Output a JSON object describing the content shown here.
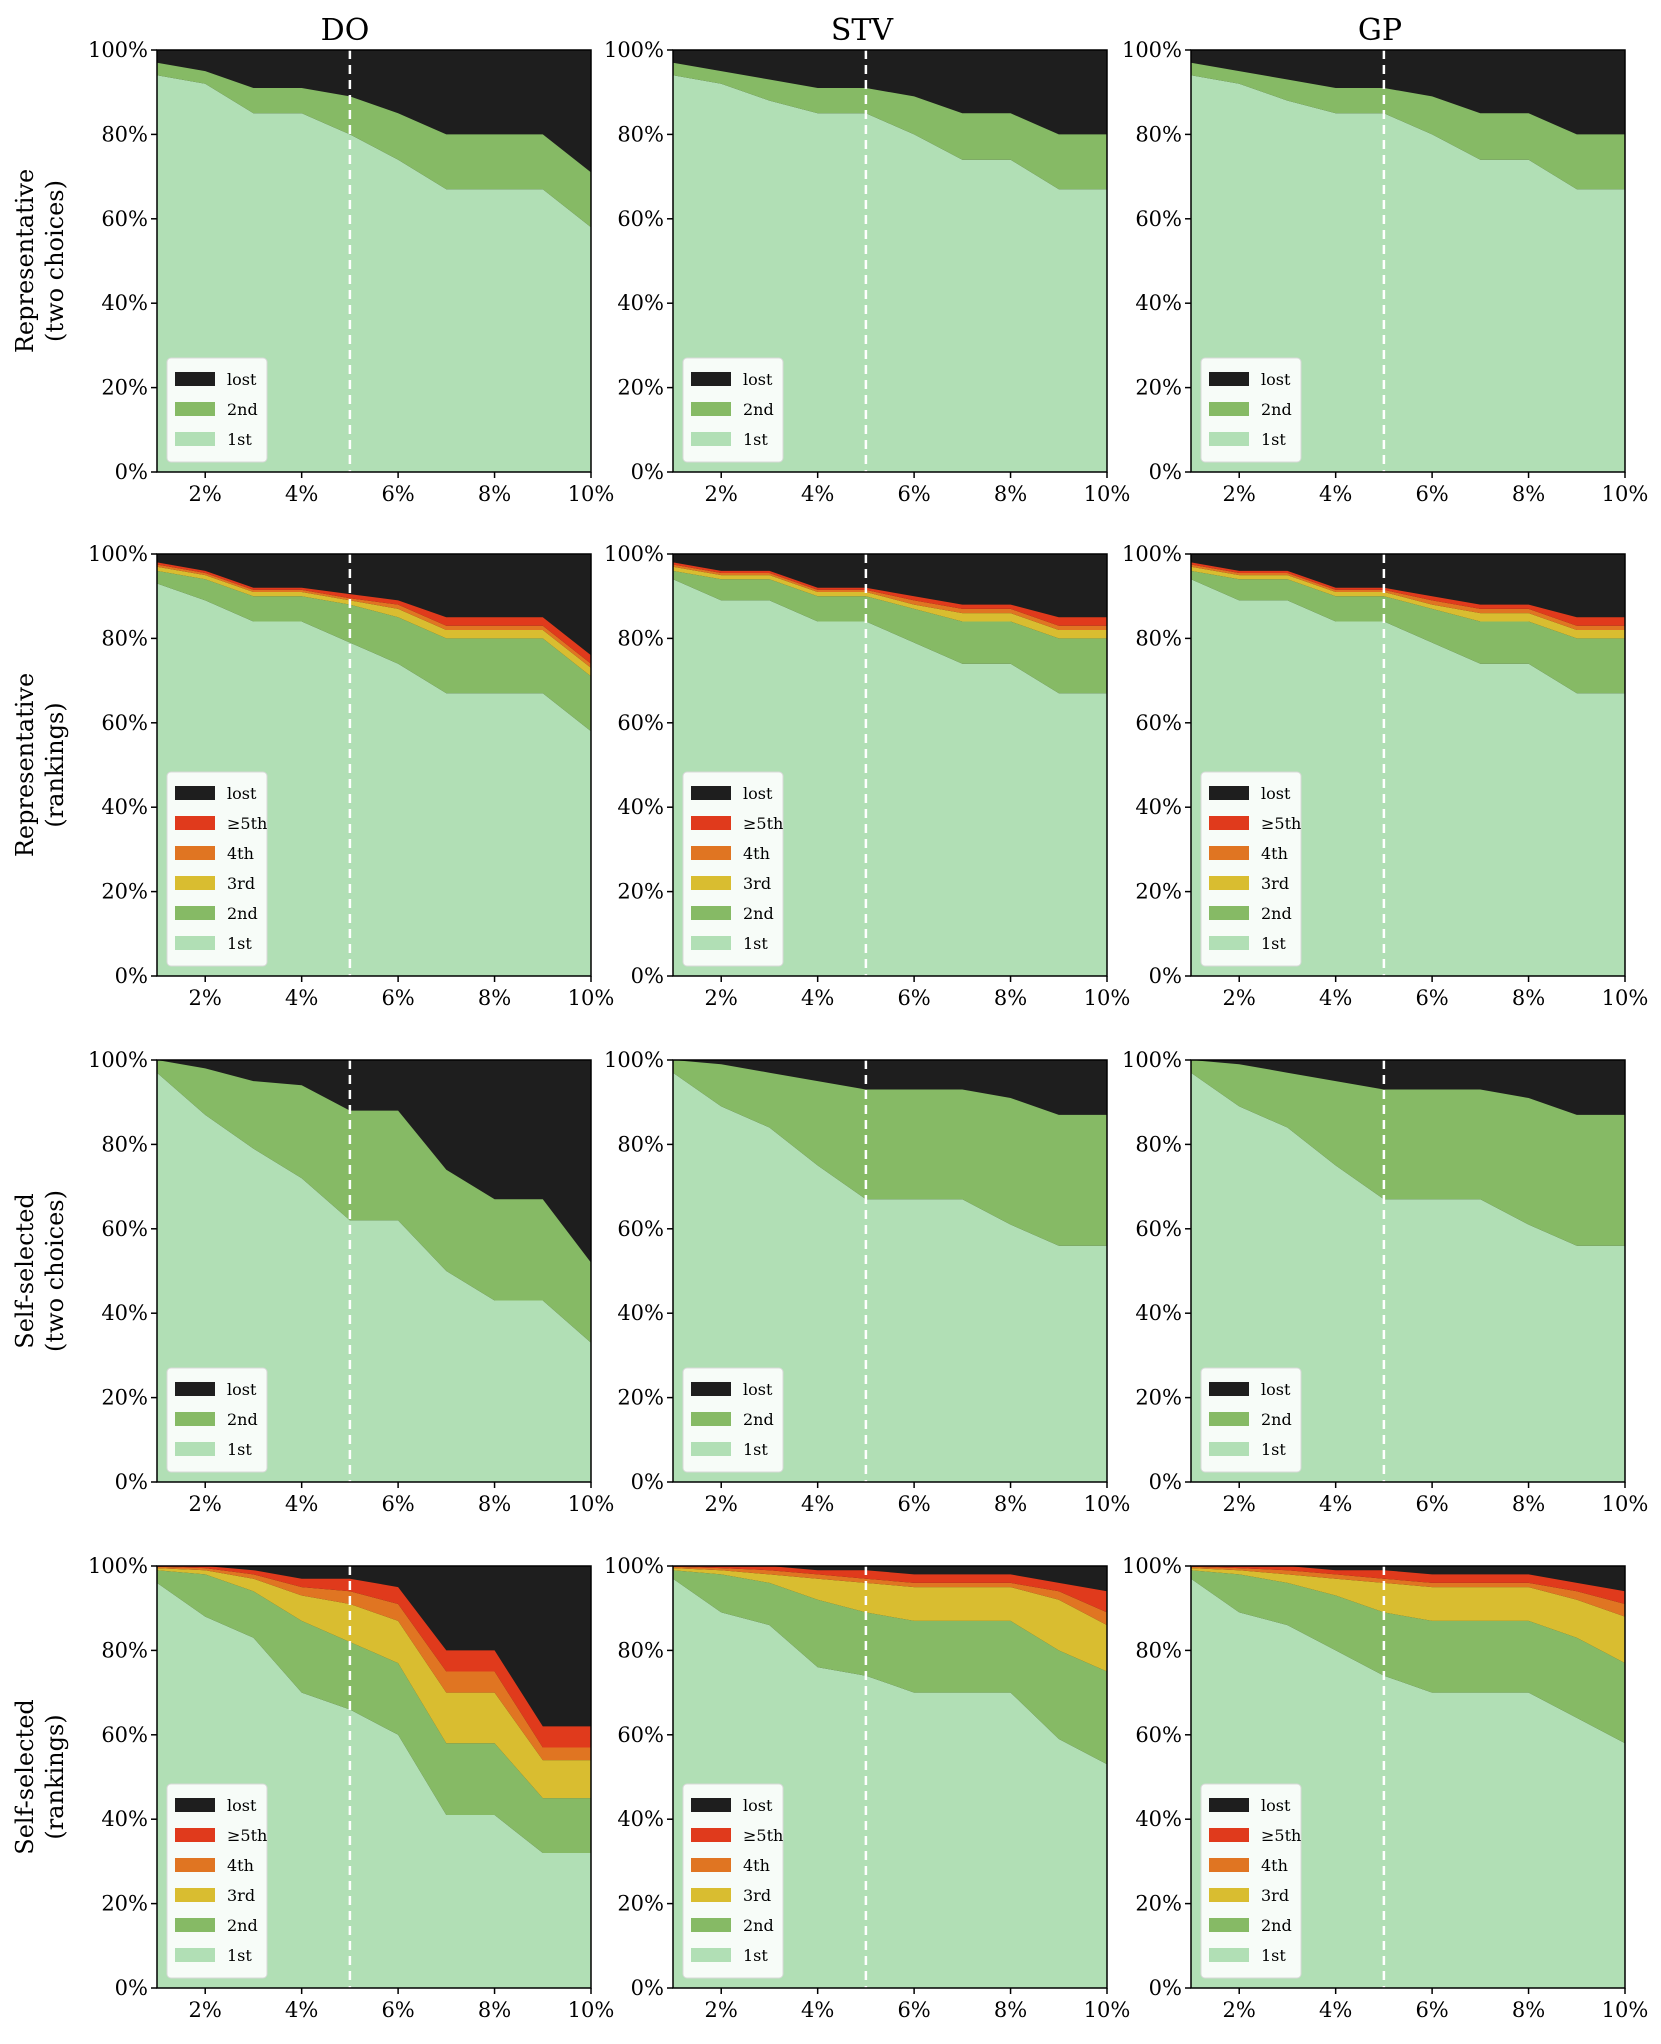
{
  "figure": {
    "columns": [
      "DO",
      "STV",
      "GP"
    ],
    "rows": [
      {
        "line1": "Representative",
        "line2": "(two choices)"
      },
      {
        "line1": "Representative",
        "line2": "(rankings)"
      },
      {
        "line1": "Self-selected",
        "line2": "(two choices)"
      },
      {
        "line1": "Self-selected",
        "line2": "(rankings)"
      }
    ],
    "x_ticks": [
      "2%",
      "4%",
      "6%",
      "8%",
      "10%"
    ],
    "y_ticks": [
      "0%",
      "20%",
      "40%",
      "60%",
      "80%",
      "100%"
    ],
    "reference_line_x": 5
  },
  "colors": {
    "1st": "#b1dfb5",
    "2nd": "#86ba65",
    "3rd": "#d9bd30",
    "4th": "#e07522",
    "5th": "#e03a1c",
    "lost": "#1e1e1e",
    "reference_line": "#ffffff"
  },
  "chart_data": [
    {
      "type": "area",
      "row": 0,
      "col": 0,
      "title": "DO",
      "x": [
        1,
        2,
        3,
        4,
        5,
        6,
        7,
        8,
        9,
        10
      ],
      "xlim": [
        1,
        10
      ],
      "ylim": [
        0,
        100
      ],
      "legend_position": "lower-left",
      "legend": [
        "lost",
        "2nd",
        "1st"
      ],
      "series": [
        {
          "name": "1st",
          "values": [
            94,
            92,
            85,
            85,
            80,
            74,
            67,
            67,
            67,
            58
          ]
        },
        {
          "name": "2nd",
          "values": [
            3,
            3,
            6,
            6,
            9,
            11,
            13,
            13,
            13,
            13
          ]
        }
      ]
    },
    {
      "type": "area",
      "row": 0,
      "col": 1,
      "title": "STV",
      "x": [
        1,
        2,
        3,
        4,
        5,
        6,
        7,
        8,
        9,
        10
      ],
      "xlim": [
        1,
        10
      ],
      "ylim": [
        0,
        100
      ],
      "legend_position": "lower-left",
      "legend": [
        "lost",
        "2nd",
        "1st"
      ],
      "series": [
        {
          "name": "1st",
          "values": [
            94,
            92,
            88,
            85,
            85,
            80,
            74,
            74,
            67,
            67
          ]
        },
        {
          "name": "2nd",
          "values": [
            3,
            3,
            5,
            6,
            6,
            9,
            11,
            11,
            13,
            13
          ]
        }
      ]
    },
    {
      "type": "area",
      "row": 0,
      "col": 2,
      "title": "GP",
      "x": [
        1,
        2,
        3,
        4,
        5,
        6,
        7,
        8,
        9,
        10
      ],
      "xlim": [
        1,
        10
      ],
      "ylim": [
        0,
        100
      ],
      "legend_position": "lower-left",
      "legend": [
        "lost",
        "2nd",
        "1st"
      ],
      "series": [
        {
          "name": "1st",
          "values": [
            94,
            92,
            88,
            85,
            85,
            80,
            74,
            74,
            67,
            67
          ]
        },
        {
          "name": "2nd",
          "values": [
            3,
            3,
            5,
            6,
            6,
            9,
            11,
            11,
            13,
            13
          ]
        }
      ]
    },
    {
      "type": "area",
      "row": 1,
      "col": 0,
      "title": "DO",
      "x": [
        1,
        2,
        3,
        4,
        5,
        6,
        7,
        8,
        9,
        10
      ],
      "xlim": [
        1,
        10
      ],
      "ylim": [
        0,
        100
      ],
      "legend_position": "lower-left",
      "legend": [
        "lost",
        "≥5th",
        "4th",
        "3rd",
        "2nd",
        "1st"
      ],
      "series": [
        {
          "name": "1st",
          "values": [
            93,
            89,
            84,
            84,
            79,
            74,
            67,
            67,
            67,
            58
          ]
        },
        {
          "name": "2nd",
          "values": [
            3,
            5,
            6,
            6,
            9,
            11,
            13,
            13,
            13,
            13
          ]
        },
        {
          "name": "3rd",
          "values": [
            1,
            1,
            1,
            1,
            1,
            2,
            2,
            2,
            2,
            2
          ]
        },
        {
          "name": "4th",
          "values": [
            0.5,
            0.5,
            0.5,
            0.5,
            0.5,
            1,
            1,
            1,
            1,
            1
          ]
        },
        {
          "name": "≥5th",
          "values": [
            0.5,
            0.5,
            0.5,
            0.5,
            1,
            1,
            2,
            2,
            2,
            2
          ]
        }
      ]
    },
    {
      "type": "area",
      "row": 1,
      "col": 1,
      "title": "STV",
      "x": [
        1,
        2,
        3,
        4,
        5,
        6,
        7,
        8,
        9,
        10
      ],
      "xlim": [
        1,
        10
      ],
      "ylim": [
        0,
        100
      ],
      "legend_position": "lower-left",
      "legend": [
        "lost",
        "≥5th",
        "4th",
        "3rd",
        "2nd",
        "1st"
      ],
      "series": [
        {
          "name": "1st",
          "values": [
            94,
            89,
            89,
            84,
            84,
            79,
            74,
            74,
            67,
            67
          ]
        },
        {
          "name": "2nd",
          "values": [
            2,
            5,
            5,
            6,
            6,
            8,
            10,
            10,
            13,
            13
          ]
        },
        {
          "name": "3rd",
          "values": [
            1,
            1,
            1,
            1,
            1,
            1,
            2,
            2,
            2,
            2
          ]
        },
        {
          "name": "4th",
          "values": [
            0.5,
            0.5,
            0.5,
            0.5,
            0.5,
            1,
            1,
            1,
            1,
            1
          ]
        },
        {
          "name": "≥5th",
          "values": [
            0.5,
            0.5,
            0.5,
            0.5,
            0.5,
            1,
            1,
            1,
            2,
            2
          ]
        }
      ]
    },
    {
      "type": "area",
      "row": 1,
      "col": 2,
      "title": "GP",
      "x": [
        1,
        2,
        3,
        4,
        5,
        6,
        7,
        8,
        9,
        10
      ],
      "xlim": [
        1,
        10
      ],
      "ylim": [
        0,
        100
      ],
      "legend_position": "lower-left",
      "legend": [
        "lost",
        "≥5th",
        "4th",
        "3rd",
        "2nd",
        "1st"
      ],
      "series": [
        {
          "name": "1st",
          "values": [
            94,
            89,
            89,
            84,
            84,
            79,
            74,
            74,
            67,
            67
          ]
        },
        {
          "name": "2nd",
          "values": [
            2,
            5,
            5,
            6,
            6,
            8,
            10,
            10,
            13,
            13
          ]
        },
        {
          "name": "3rd",
          "values": [
            1,
            1,
            1,
            1,
            1,
            1,
            2,
            2,
            2,
            2
          ]
        },
        {
          "name": "4th",
          "values": [
            0.5,
            0.5,
            0.5,
            0.5,
            0.5,
            1,
            1,
            1,
            1,
            1
          ]
        },
        {
          "name": "≥5th",
          "values": [
            0.5,
            0.5,
            0.5,
            0.5,
            0.5,
            1,
            1,
            1,
            2,
            2
          ]
        }
      ]
    },
    {
      "type": "area",
      "row": 2,
      "col": 0,
      "title": "DO",
      "x": [
        1,
        2,
        3,
        4,
        5,
        6,
        7,
        8,
        9,
        10
      ],
      "xlim": [
        1,
        10
      ],
      "ylim": [
        0,
        100
      ],
      "legend_position": "lower-left",
      "legend": [
        "lost",
        "2nd",
        "1st"
      ],
      "series": [
        {
          "name": "1st",
          "values": [
            97,
            87,
            79,
            72,
            62,
            62,
            50,
            43,
            43,
            33
          ]
        },
        {
          "name": "2nd",
          "values": [
            3,
            11,
            16,
            22,
            26,
            26,
            24,
            24,
            24,
            19
          ]
        }
      ]
    },
    {
      "type": "area",
      "row": 2,
      "col": 1,
      "title": "STV",
      "x": [
        1,
        2,
        3,
        4,
        5,
        6,
        7,
        8,
        9,
        10
      ],
      "xlim": [
        1,
        10
      ],
      "ylim": [
        0,
        100
      ],
      "legend_position": "lower-left",
      "legend": [
        "lost",
        "2nd",
        "1st"
      ],
      "series": [
        {
          "name": "1st",
          "values": [
            97,
            89,
            84,
            75,
            67,
            67,
            67,
            61,
            56,
            56
          ]
        },
        {
          "name": "2nd",
          "values": [
            3,
            10,
            13,
            20,
            26,
            26,
            26,
            30,
            31,
            31
          ]
        }
      ]
    },
    {
      "type": "area",
      "row": 2,
      "col": 2,
      "title": "GP",
      "x": [
        1,
        2,
        3,
        4,
        5,
        6,
        7,
        8,
        9,
        10
      ],
      "xlim": [
        1,
        10
      ],
      "ylim": [
        0,
        100
      ],
      "legend_position": "lower-left",
      "legend": [
        "lost",
        "2nd",
        "1st"
      ],
      "series": [
        {
          "name": "1st",
          "values": [
            97,
            89,
            84,
            75,
            67,
            67,
            67,
            61,
            56,
            56
          ]
        },
        {
          "name": "2nd",
          "values": [
            3,
            10,
            13,
            20,
            26,
            26,
            26,
            30,
            31,
            31
          ]
        }
      ]
    },
    {
      "type": "area",
      "row": 3,
      "col": 0,
      "title": "DO",
      "x": [
        1,
        2,
        3,
        4,
        5,
        6,
        7,
        8,
        9,
        10
      ],
      "xlim": [
        1,
        10
      ],
      "ylim": [
        0,
        100
      ],
      "legend_position": "lower-left",
      "legend": [
        "lost",
        "≥5th",
        "4th",
        "3rd",
        "2nd",
        "1st"
      ],
      "series": [
        {
          "name": "1st",
          "values": [
            96,
            88,
            83,
            70,
            66,
            60,
            41,
            41,
            32,
            32
          ]
        },
        {
          "name": "2nd",
          "values": [
            3,
            10,
            11,
            17,
            16,
            17,
            17,
            17,
            13,
            13
          ]
        },
        {
          "name": "3rd",
          "values": [
            0.5,
            1,
            3,
            6,
            9,
            10,
            12,
            12,
            9,
            9
          ]
        },
        {
          "name": "4th",
          "values": [
            0.3,
            0.5,
            1,
            2,
            3,
            4,
            5,
            5,
            3,
            3
          ]
        },
        {
          "name": "≥5th",
          "values": [
            0.2,
            0.5,
            1,
            2,
            3,
            4,
            5,
            5,
            5,
            5
          ]
        }
      ]
    },
    {
      "type": "area",
      "row": 3,
      "col": 1,
      "title": "STV",
      "x": [
        1,
        2,
        3,
        4,
        5,
        6,
        7,
        8,
        9,
        10
      ],
      "xlim": [
        1,
        10
      ],
      "ylim": [
        0,
        100
      ],
      "legend_position": "lower-left",
      "legend": [
        "lost",
        "≥5th",
        "4th",
        "3rd",
        "2nd",
        "1st"
      ],
      "series": [
        {
          "name": "1st",
          "values": [
            97,
            89,
            86,
            76,
            74,
            70,
            70,
            70,
            59,
            53
          ]
        },
        {
          "name": "2nd",
          "values": [
            2,
            9,
            10,
            16,
            15,
            17,
            17,
            17,
            21,
            22
          ]
        },
        {
          "name": "3rd",
          "values": [
            0.5,
            1,
            2,
            5,
            7,
            8,
            8,
            8,
            12,
            11
          ]
        },
        {
          "name": "4th",
          "values": [
            0.3,
            0.5,
            1,
            1,
            1,
            1,
            1,
            1,
            2,
            3
          ]
        },
        {
          "name": "≥5th",
          "values": [
            0.2,
            0.5,
            1,
            1,
            2,
            2,
            2,
            2,
            2,
            5
          ]
        }
      ]
    },
    {
      "type": "area",
      "row": 3,
      "col": 2,
      "title": "GP",
      "x": [
        1,
        2,
        3,
        4,
        5,
        6,
        7,
        8,
        9,
        10
      ],
      "xlim": [
        1,
        10
      ],
      "ylim": [
        0,
        100
      ],
      "legend_position": "lower-left",
      "legend": [
        "lost",
        "≥5th",
        "4th",
        "3rd",
        "2nd",
        "1st"
      ],
      "series": [
        {
          "name": "1st",
          "values": [
            97,
            89,
            86,
            80,
            74,
            70,
            70,
            70,
            64,
            58
          ]
        },
        {
          "name": "2nd",
          "values": [
            2,
            9,
            10,
            13,
            15,
            17,
            17,
            17,
            19,
            19
          ]
        },
        {
          "name": "3rd",
          "values": [
            0.5,
            1,
            2,
            4,
            7,
            8,
            8,
            8,
            9,
            11
          ]
        },
        {
          "name": "4th",
          "values": [
            0.3,
            0.5,
            1,
            1,
            1,
            1,
            1,
            1,
            2,
            3
          ]
        },
        {
          "name": "≥5th",
          "values": [
            0.2,
            0.5,
            1,
            1,
            2,
            2,
            2,
            2,
            2,
            3
          ]
        }
      ]
    }
  ]
}
